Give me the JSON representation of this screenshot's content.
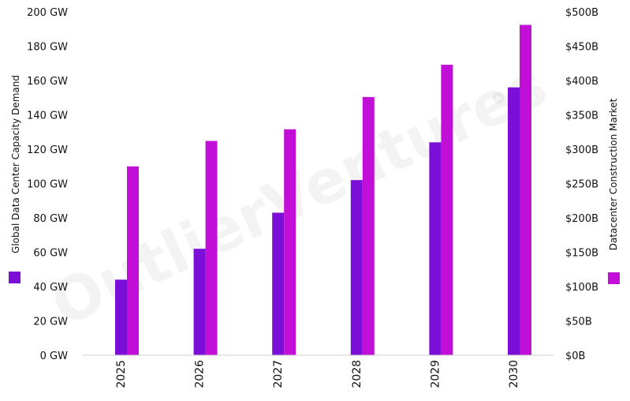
{
  "chart_data": {
    "type": "bar",
    "categories": [
      "2025",
      "2026",
      "2027",
      "2028",
      "2029",
      "2030"
    ],
    "series": [
      {
        "name": "Global Data Center Capacity Demand",
        "axis": "left",
        "color": "#7b0fd8",
        "values": [
          44,
          62,
          83,
          102,
          124,
          156
        ]
      },
      {
        "name": "Datacenter Construction Market",
        "axis": "right",
        "color": "#c10fd8",
        "values": [
          275,
          312,
          329,
          376,
          423,
          481
        ]
      }
    ],
    "y_left": {
      "label": "Global Data Center Capacity Demand",
      "range": [
        0,
        200
      ],
      "ticks": [
        "0 GW",
        "20 GW",
        "40 GW",
        "60 GW",
        "80 GW",
        "100 GW",
        "120 GW",
        "140 GW",
        "160 GW",
        "180 GW",
        "200 GW"
      ]
    },
    "y_right": {
      "label": "Datacenter Construction Market",
      "range": [
        0,
        500
      ],
      "ticks": [
        "$0B",
        "$50B",
        "$100B",
        "$150B",
        "$200B",
        "$250B",
        "$300B",
        "$350B",
        "$400B",
        "$450B",
        "$500B"
      ]
    },
    "grid": false,
    "watermark": "OutlierVentures",
    "watermark_mark": "°"
  }
}
